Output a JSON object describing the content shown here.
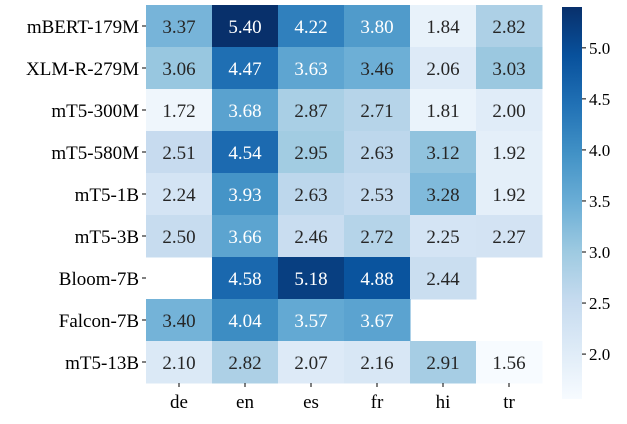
{
  "chart_data": {
    "type": "heatmap",
    "title": "",
    "xlabel": "",
    "ylabel": "",
    "rows": [
      "mBERT-179M",
      "XLM-R-279M",
      "mT5-300M",
      "mT5-580M",
      "mT5-1B",
      "mT5-3B",
      "Bloom-7B",
      "Falcon-7B",
      "mT5-13B"
    ],
    "columns": [
      "de",
      "en",
      "es",
      "fr",
      "hi",
      "tr"
    ],
    "values": [
      [
        3.37,
        5.4,
        4.22,
        3.8,
        1.84,
        2.82
      ],
      [
        3.06,
        4.47,
        3.63,
        3.46,
        2.06,
        3.03
      ],
      [
        1.72,
        3.68,
        2.87,
        2.71,
        1.81,
        2.0
      ],
      [
        2.51,
        4.54,
        2.95,
        2.63,
        3.12,
        1.92
      ],
      [
        2.24,
        3.93,
        2.63,
        2.53,
        3.28,
        1.92
      ],
      [
        2.5,
        3.66,
        2.46,
        2.72,
        2.25,
        2.27
      ],
      [
        null,
        4.58,
        5.18,
        4.88,
        2.44,
        null
      ],
      [
        3.4,
        4.04,
        3.57,
        3.67,
        null,
        null
      ],
      [
        2.1,
        2.82,
        2.07,
        2.16,
        2.91,
        1.56
      ]
    ],
    "colorbar": {
      "min": 1.56,
      "max": 5.4,
      "ticks": [
        "2.0",
        "2.5",
        "3.0",
        "3.5",
        "4.0",
        "4.5",
        "5.0"
      ],
      "colormap": "Blues"
    },
    "grid": false,
    "legend": "colorbar-right"
  }
}
